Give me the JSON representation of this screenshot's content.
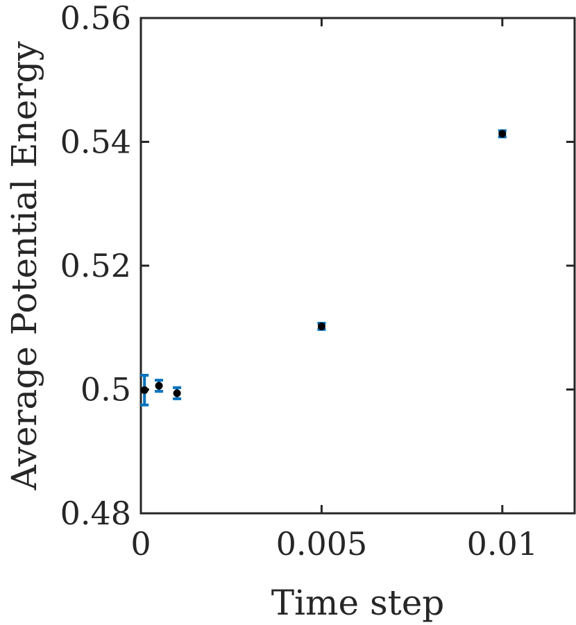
{
  "chart_data": {
    "type": "scatter",
    "title": "",
    "xlabel": "Time step",
    "ylabel": "Average Potential Energy",
    "xlim": [
      0,
      0.012
    ],
    "ylim": [
      0.48,
      0.56
    ],
    "xticks": [
      0,
      0.005,
      0.01
    ],
    "xtick_labels": [
      "0",
      "0.005",
      "0.01"
    ],
    "yticks": [
      0.48,
      0.5,
      0.52,
      0.54,
      0.56
    ],
    "ytick_labels": [
      "0.48",
      "0.5",
      "0.52",
      "0.54",
      "0.56"
    ],
    "grid": false,
    "legend": "none",
    "marker_color": "#000000",
    "errorbar_color": "#0072BD",
    "points": [
      {
        "x": 0.0001,
        "y": 0.4999,
        "err": 0.0024
      },
      {
        "x": 0.0005,
        "y": 0.5006,
        "err": 0.0009
      },
      {
        "x": 0.001,
        "y": 0.4994,
        "err": 0.0009
      },
      {
        "x": 0.005,
        "y": 0.5102,
        "err": 0.0005
      },
      {
        "x": 0.01,
        "y": 0.5413,
        "err": 0.0005
      }
    ]
  }
}
